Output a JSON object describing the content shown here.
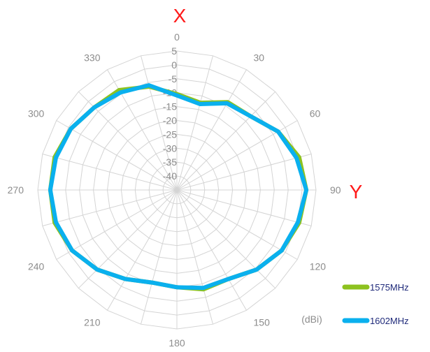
{
  "chart_data": {
    "type": "radar",
    "unit": "(dBi)",
    "axis_letters": {
      "x": "X",
      "y": "Y"
    },
    "angles": [
      0,
      15,
      30,
      45,
      60,
      75,
      90,
      105,
      120,
      135,
      150,
      165,
      180,
      195,
      210,
      225,
      240,
      255,
      270,
      285,
      300,
      315,
      330,
      345
    ],
    "angle_labels": [
      "0",
      "",
      "30",
      "",
      "60",
      "",
      "90",
      "",
      "120",
      "",
      "150",
      "",
      "180",
      "",
      "210",
      "",
      "240",
      "",
      "270",
      "",
      "300",
      "",
      "330",
      ""
    ],
    "radial_ticks": [
      5,
      0,
      -5,
      -10,
      -15,
      -20,
      -25,
      -30,
      -35,
      -40
    ],
    "rlim": [
      -45,
      5
    ],
    "series": [
      {
        "name": "1575MHz",
        "color": "#8dc21f",
        "values": [
          -10.5,
          -12.5,
          -8.5,
          -7.5,
          -3.0,
          0.5,
          1.5,
          0.5,
          -1.5,
          -4.5,
          -8.0,
          -8.0,
          -10.0,
          -10.5,
          -8.0,
          -4.5,
          -1.5,
          0.5,
          0.5,
          0.5,
          -1.0,
          -3.0,
          -3.5,
          -6.5
        ]
      },
      {
        "name": "1602MHz",
        "color": "#0ab0ee",
        "values": [
          -11.0,
          -13.0,
          -9.0,
          -7.5,
          -3.0,
          -0.5,
          1.5,
          0.0,
          -1.5,
          -4.5,
          -8.0,
          -8.5,
          -10.0,
          -10.5,
          -8.0,
          -4.5,
          -1.5,
          0.0,
          0.5,
          0.0,
          -1.0,
          -3.0,
          -4.5,
          -6.0
        ]
      }
    ]
  }
}
